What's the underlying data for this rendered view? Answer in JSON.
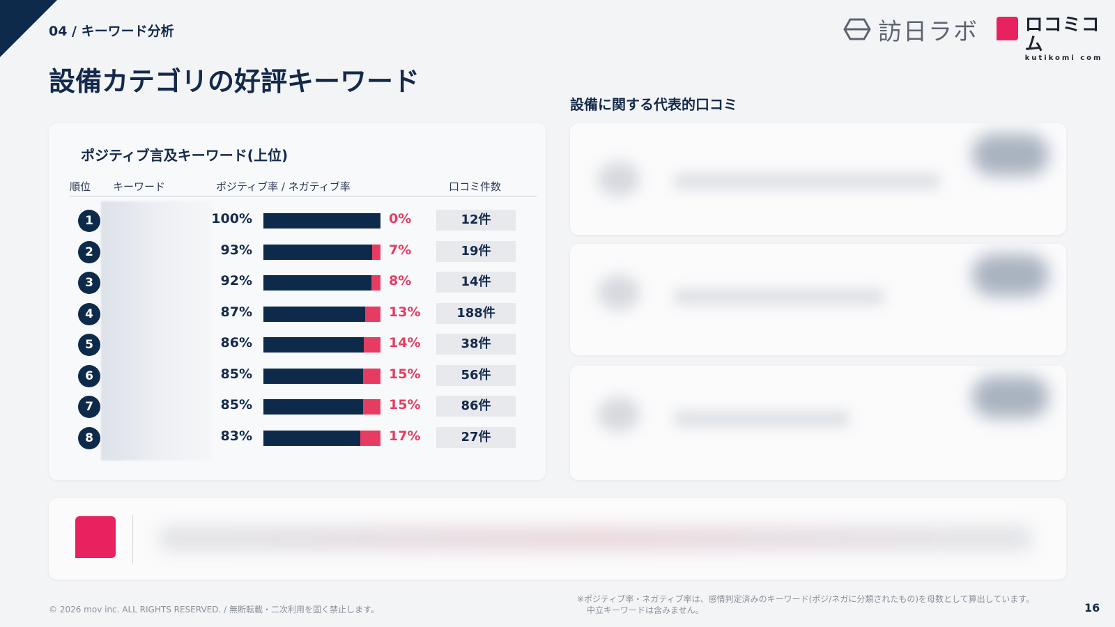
{
  "header": {
    "section_label": "04 / キーワード分析",
    "title": "設備カテゴリの好評キーワード",
    "logos": {
      "houlab_text": "訪日ラボ",
      "kutikomi_main": "ロコミコム",
      "kutikomi_sub": "kutikomi com"
    }
  },
  "left_panel": {
    "title": "ポジティブ言及キーワード(上位)",
    "columns": {
      "rank": "順位",
      "keyword": "キーワード",
      "rates": "ポジティブ率 / ネガティブ率",
      "count": "口コミ件数"
    },
    "rows": [
      {
        "rank": "1",
        "positive": "100%",
        "negative": "0%",
        "positive_fraction": 1.0,
        "count": "12件"
      },
      {
        "rank": "2",
        "positive": "93%",
        "negative": "7%",
        "positive_fraction": 0.93,
        "count": "19件"
      },
      {
        "rank": "3",
        "positive": "92%",
        "negative": "8%",
        "positive_fraction": 0.92,
        "count": "14件"
      },
      {
        "rank": "4",
        "positive": "87%",
        "negative": "13%",
        "positive_fraction": 0.87,
        "count": "188件"
      },
      {
        "rank": "5",
        "positive": "86%",
        "negative": "14%",
        "positive_fraction": 0.86,
        "count": "38件"
      },
      {
        "rank": "6",
        "positive": "85%",
        "negative": "15%",
        "positive_fraction": 0.85,
        "count": "56件"
      },
      {
        "rank": "7",
        "positive": "85%",
        "negative": "15%",
        "positive_fraction": 0.85,
        "count": "86件"
      },
      {
        "rank": "8",
        "positive": "83%",
        "negative": "17%",
        "positive_fraction": 0.83,
        "count": "27件"
      }
    ]
  },
  "right_panel": {
    "title": "設備に関する代表的口コミ"
  },
  "footer": {
    "copyright": "© 2026 mov inc. ALL RIGHTS RESERVED. / 無断転載・二次利用を固く禁止します。",
    "note_line1": "※ポジティブ率・ネガティブ率は、感情判定済みのキーワード(ポジ/ネガに分類されたもの)を母数として算出しています。",
    "note_line2": "中立キーワードは含みません。",
    "page_number": "16"
  },
  "colors": {
    "navy": "#0e2a4a",
    "negative_red": "#e63c61",
    "brand_pink": "#e8225e"
  }
}
